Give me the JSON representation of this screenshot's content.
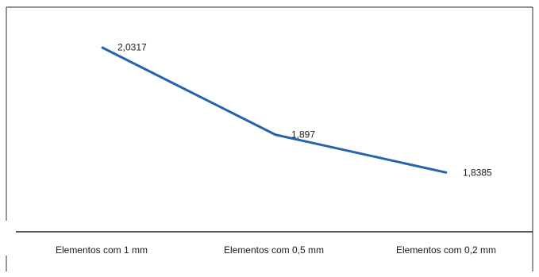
{
  "chart_data": {
    "type": "line",
    "categories": [
      "Elementos com 1 mm",
      "Elementos com 0,5 mm",
      "Elementos com 0,2 mm"
    ],
    "values": [
      2.0317,
      1.897,
      1.8385
    ],
    "data_labels": [
      "2,0317",
      "1,897",
      "1,8385"
    ],
    "title": "",
    "xlabel": "",
    "ylabel": "",
    "ylim": [
      1.75,
      2.08
    ],
    "grid": false,
    "legend": "none",
    "line_color": "#2563b0"
  }
}
